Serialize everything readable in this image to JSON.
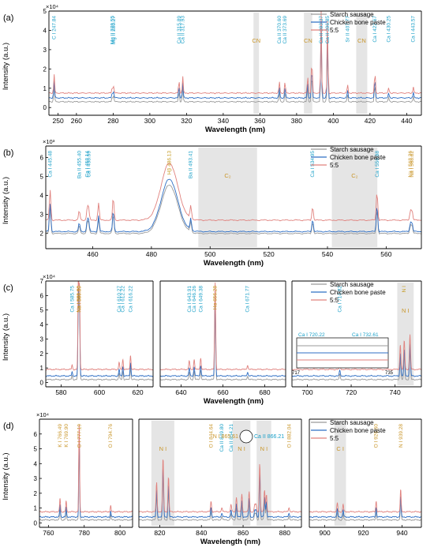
{
  "colors": {
    "starch": "#9a9a9a",
    "chicken": "#2f6fc4",
    "mix": "#e0827e",
    "label_blue": "#1aa0c8",
    "label_orange": "#c9962a",
    "label_gold": "#c59a20",
    "box_gray": "#bdbdbd",
    "axis": "#000000"
  },
  "common": {
    "ylabel": "Intensity (a.u.)",
    "xlabel": "Wavelength (nm)",
    "legend": [
      "Starch sausage",
      "Chicken bone paste",
      "5:5"
    ]
  },
  "chart_data": [
    {
      "panel": "(a)",
      "type": "line",
      "multiplier": "×10⁴",
      "xlim": [
        245,
        448
      ],
      "ylim": [
        -0.4,
        5.0
      ],
      "xticks": [
        250,
        260,
        280,
        300,
        320,
        340,
        360,
        380,
        400,
        420,
        440
      ],
      "yticks": [
        0,
        1,
        2,
        3,
        4,
        5
      ],
      "series": [
        {
          "name": "Starch sausage",
          "baseline": 0.3
        },
        {
          "name": "Chicken bone paste",
          "baseline": 0.5
        },
        {
          "name": "5:5",
          "baseline": 0.75
        }
      ],
      "peaks": [
        {
          "x": 247.84,
          "h": 1.0
        },
        {
          "x": 279.55,
          "h": 0.35
        },
        {
          "x": 280.27,
          "h": 0.35
        },
        {
          "x": 315.89,
          "h": 0.7
        },
        {
          "x": 317.93,
          "h": 0.9
        },
        {
          "x": 370.6,
          "h": 0.6
        },
        {
          "x": 373.69,
          "h": 0.6
        },
        {
          "x": 386.0,
          "h": 0.9
        },
        {
          "x": 388.3,
          "h": 2.0
        },
        {
          "x": 393.37,
          "h": 4.6
        },
        {
          "x": 396.85,
          "h": 4.0
        },
        {
          "x": 407.77,
          "h": 0.45
        },
        {
          "x": 422.67,
          "h": 1.2
        },
        {
          "x": 430.25,
          "h": 0.3
        },
        {
          "x": 443.57,
          "h": 0.35
        }
      ],
      "annotations": [
        {
          "text": "C I 247.84",
          "x": 247.84,
          "color": "blue"
        },
        {
          "text": "Mg II 279.55",
          "x": 279.55,
          "color": "blue"
        },
        {
          "text": "Mg II 280.27",
          "x": 280.27,
          "color": "blue"
        },
        {
          "text": "Ca II 315.89",
          "x": 315.89,
          "color": "blue"
        },
        {
          "text": "Ca II 317.93",
          "x": 317.93,
          "color": "blue"
        },
        {
          "text": "Ca II 370.60",
          "x": 370.6,
          "color": "blue"
        },
        {
          "text": "Ca II 373.69",
          "x": 373.69,
          "color": "blue"
        },
        {
          "text": "Ca II 393.37",
          "x": 393.37,
          "color": "blue"
        },
        {
          "text": "Ca II 396.85",
          "x": 396.85,
          "color": "blue"
        },
        {
          "text": "Sr II 407.77",
          "x": 407.77,
          "color": "blue"
        },
        {
          "text": "Ca I 422.67",
          "x": 422.67,
          "color": "blue"
        },
        {
          "text": "Ca I 430.25",
          "x": 430.25,
          "color": "blue"
        },
        {
          "text": "Ca I 443.57",
          "x": 443.57,
          "color": "blue"
        }
      ],
      "bands": [
        {
          "text": "CN",
          "x0": 356.5,
          "x1": 359.5
        },
        {
          "text": "CN",
          "x0": 384.0,
          "x1": 388.5
        },
        {
          "text": "CN",
          "x0": 412.5,
          "x1": 418.5
        }
      ]
    },
    {
      "panel": "(b)",
      "type": "line",
      "multiplier": "×10³",
      "xlim": [
        444,
        572
      ],
      "ylim": [
        1.2,
        6.6
      ],
      "xticks": [
        460,
        480,
        500,
        520,
        540,
        560
      ],
      "yticks": [
        2,
        3,
        4,
        5,
        6
      ],
      "series": [
        {
          "name": "Starch sausage",
          "baseline": 2.0
        },
        {
          "name": "Chicken bone paste",
          "baseline": 2.1
        },
        {
          "name": "5:5",
          "baseline": 2.7
        }
      ],
      "peaks": [
        {
          "x": 445.48,
          "h": 1.6
        },
        {
          "x": 455.4,
          "h": 0.5
        },
        {
          "x": 458.14,
          "h": 0.6
        },
        {
          "x": 458.59,
          "h": 0.6
        },
        {
          "x": 462.0,
          "h": 0.9
        },
        {
          "x": 467.0,
          "h": 1.2
        },
        {
          "x": 493.41,
          "h": 0.7
        },
        {
          "x": 534.95,
          "h": 0.7
        },
        {
          "x": 556.88,
          "h": 1.5
        },
        {
          "x": 568.26,
          "h": 0.5
        },
        {
          "x": 568.82,
          "h": 0.5
        }
      ],
      "h_alpha": {
        "x": 486.13,
        "h": 3.0,
        "width": 4.0
      },
      "annotations": [
        {
          "text": "Ca I 445.48",
          "x": 445.48,
          "color": "blue"
        },
        {
          "text": "Ba II 455.40",
          "x": 455.4,
          "color": "blue"
        },
        {
          "text": "Ca I 458.14",
          "x": 458.14,
          "color": "blue"
        },
        {
          "text": "Ca I 458.59",
          "x": 458.59,
          "color": "blue"
        },
        {
          "text": "Hβ 486.13",
          "x": 486.13,
          "color": "gold"
        },
        {
          "text": "Ba II 493.41",
          "x": 493.41,
          "color": "blue"
        },
        {
          "text": "Ca I 534.95",
          "x": 534.95,
          "color": "blue"
        },
        {
          "text": "Ca I 556.88",
          "x": 556.88,
          "color": "blue"
        },
        {
          "text": "Na I 568.26",
          "x": 568.26,
          "color": "orange"
        },
        {
          "text": "Na I 568.82",
          "x": 568.82,
          "color": "orange"
        }
      ],
      "bands": [
        {
          "text": "C₂",
          "x0": 496.0,
          "x1": 516.0
        },
        {
          "text": "C₂",
          "x0": 541.5,
          "x1": 557.0
        }
      ]
    },
    {
      "panel": "(c)",
      "type": "line",
      "multiplier": "×10⁴",
      "ylim": [
        -0.3,
        7.0
      ],
      "segments": [
        {
          "xlim": [
            572,
            628
          ],
          "xticks": [
            580,
            600,
            620
          ]
        },
        {
          "xlim": [
            630,
            690
          ],
          "xticks": [
            640,
            660,
            680
          ]
        },
        {
          "xlim": [
            693,
            752
          ],
          "xticks": [
            700,
            720,
            740
          ]
        }
      ],
      "yticks": [
        0,
        1,
        2,
        3,
        4,
        5,
        6,
        7
      ],
      "series": [
        {
          "name": "Starch sausage",
          "baseline": 0.2
        },
        {
          "name": "Chicken bone paste",
          "baseline": 0.45
        },
        {
          "name": "5:5",
          "baseline": 0.9
        }
      ],
      "peaks": [
        {
          "x": 585.75,
          "h": 0.3
        },
        {
          "x": 589.0,
          "h": 6.2
        },
        {
          "x": 589.59,
          "h": 5.6
        },
        {
          "x": 610.27,
          "h": 0.5
        },
        {
          "x": 612.22,
          "h": 0.7
        },
        {
          "x": 616.22,
          "h": 1.0
        },
        {
          "x": 643.91,
          "h": 0.6
        },
        {
          "x": 646.26,
          "h": 0.7
        },
        {
          "x": 649.38,
          "h": 0.8
        },
        {
          "x": 656.28,
          "h": 6.0
        },
        {
          "x": 671.77,
          "h": 0.3
        },
        {
          "x": 714.82,
          "h": 0.4
        },
        {
          "x": 742.4,
          "h": 1.7
        },
        {
          "x": 744.2,
          "h": 2.0
        },
        {
          "x": 746.8,
          "h": 2.4
        }
      ],
      "annotations": [
        {
          "text": "Ca I 585.75",
          "x": 585.75,
          "color": "blue"
        },
        {
          "text": "Na I 589.00",
          "x": 589.0,
          "color": "orange"
        },
        {
          "text": "Na I 589.59",
          "x": 589.59,
          "color": "orange"
        },
        {
          "text": "Ca I 610.27",
          "x": 610.27,
          "color": "blue"
        },
        {
          "text": "Ca I 612.22",
          "x": 612.22,
          "color": "blue"
        },
        {
          "text": "Ca I 616.22",
          "x": 616.22,
          "color": "blue"
        },
        {
          "text": "Ca I 643.91",
          "x": 643.91,
          "color": "blue"
        },
        {
          "text": "Ca I 646.26",
          "x": 646.26,
          "color": "blue"
        },
        {
          "text": "Ca I 649.38",
          "x": 649.38,
          "color": "blue"
        },
        {
          "text": "Hα 656.28",
          "x": 656.28,
          "color": "gold"
        },
        {
          "text": "Ca I 671.77",
          "x": 671.77,
          "color": "blue"
        },
        {
          "text": "Ca I 714.82",
          "x": 714.82,
          "color": "blue"
        },
        {
          "text": "N I",
          "x": 744.0,
          "color": "gold"
        }
      ],
      "inset": {
        "xlim": [
          717,
          735
        ],
        "xticks": [
          717,
          735
        ],
        "labels": [
          "Ca I 720.22",
          "Ca I 732.61"
        ]
      },
      "bands": [
        {
          "text": "N I",
          "x0": 741.0,
          "x1": 748.5
        }
      ]
    },
    {
      "panel": "(d)",
      "type": "line",
      "multiplier": "×10⁴",
      "ylim": [
        -0.3,
        7.0
      ],
      "segments": [
        {
          "xlim": [
            755,
            807
          ],
          "xticks": [
            760,
            780,
            800
          ]
        },
        {
          "xlim": [
            810,
            888
          ],
          "xticks": [
            820,
            840,
            860,
            880
          ]
        },
        {
          "xlim": [
            892,
            950
          ],
          "xticks": [
            900,
            920,
            940
          ]
        }
      ],
      "yticks": [
        0,
        1,
        2,
        3,
        4,
        5,
        6
      ],
      "series": [
        {
          "name": "Starch sausage",
          "baseline": 0.2
        },
        {
          "name": "Chicken bone paste",
          "baseline": 0.4
        },
        {
          "name": "5:5",
          "baseline": 0.75
        }
      ],
      "peaks": [
        {
          "x": 766.49,
          "h": 0.9
        },
        {
          "x": 769.9,
          "h": 0.7
        },
        {
          "x": 777.19,
          "h": 5.9
        },
        {
          "x": 794.76,
          "h": 0.4
        },
        {
          "x": 818.5,
          "h": 2.0
        },
        {
          "x": 821.6,
          "h": 3.7
        },
        {
          "x": 824.2,
          "h": 2.4
        },
        {
          "x": 844.64,
          "h": 0.7
        },
        {
          "x": 849.8,
          "h": 0.3
        },
        {
          "x": 854.21,
          "h": 0.5
        },
        {
          "x": 856.8,
          "h": 1.0
        },
        {
          "x": 859.4,
          "h": 1.2
        },
        {
          "x": 862.9,
          "h": 1.4
        },
        {
          "x": 865.61,
          "h": 0.5
        },
        {
          "x": 866.21,
          "h": 0.5
        },
        {
          "x": 868.0,
          "h": 3.3
        },
        {
          "x": 870.3,
          "h": 1.5
        },
        {
          "x": 871.2,
          "h": 1.2
        },
        {
          "x": 882.04,
          "h": 0.3
        },
        {
          "x": 906.5,
          "h": 0.6
        },
        {
          "x": 909.5,
          "h": 0.5
        },
        {
          "x": 926.6,
          "h": 0.7
        },
        {
          "x": 939.28,
          "h": 1.5
        }
      ],
      "annotations": [
        {
          "text": "K I 766.49",
          "x": 766.49,
          "color": "orange"
        },
        {
          "text": "K I 769.90",
          "x": 769.9,
          "color": "orange"
        },
        {
          "text": "O I 777.19",
          "x": 777.19,
          "color": "orange"
        },
        {
          "text": "O I 794.76",
          "x": 794.76,
          "color": "orange"
        },
        {
          "text": "O I 844.64",
          "x": 844.64,
          "color": "orange"
        },
        {
          "text": "Ca II 849.80",
          "x": 849.8,
          "color": "blue"
        },
        {
          "text": "Ca II 854.21",
          "x": 854.21,
          "color": "blue"
        },
        {
          "text": "O I 882.04",
          "x": 882.04,
          "color": "orange"
        },
        {
          "text": "O I 926.60",
          "x": 926.6,
          "color": "orange"
        },
        {
          "text": "N I 939.28",
          "x": 939.28,
          "color": "orange"
        }
      ],
      "callouts": [
        {
          "text": "N I 865.61",
          "color": "orange"
        },
        {
          "text": "Ca II 866.21",
          "color": "blue"
        }
      ],
      "bands": [
        {
          "text": "N I",
          "x0": 816.0,
          "x1": 827.0
        },
        {
          "text": "N I",
          "x0": 855.0,
          "x1": 863.5
        },
        {
          "text": "N I",
          "x0": 866.5,
          "x1": 873.5
        },
        {
          "text": "C I",
          "x0": 905.0,
          "x1": 911.0
        }
      ]
    }
  ]
}
